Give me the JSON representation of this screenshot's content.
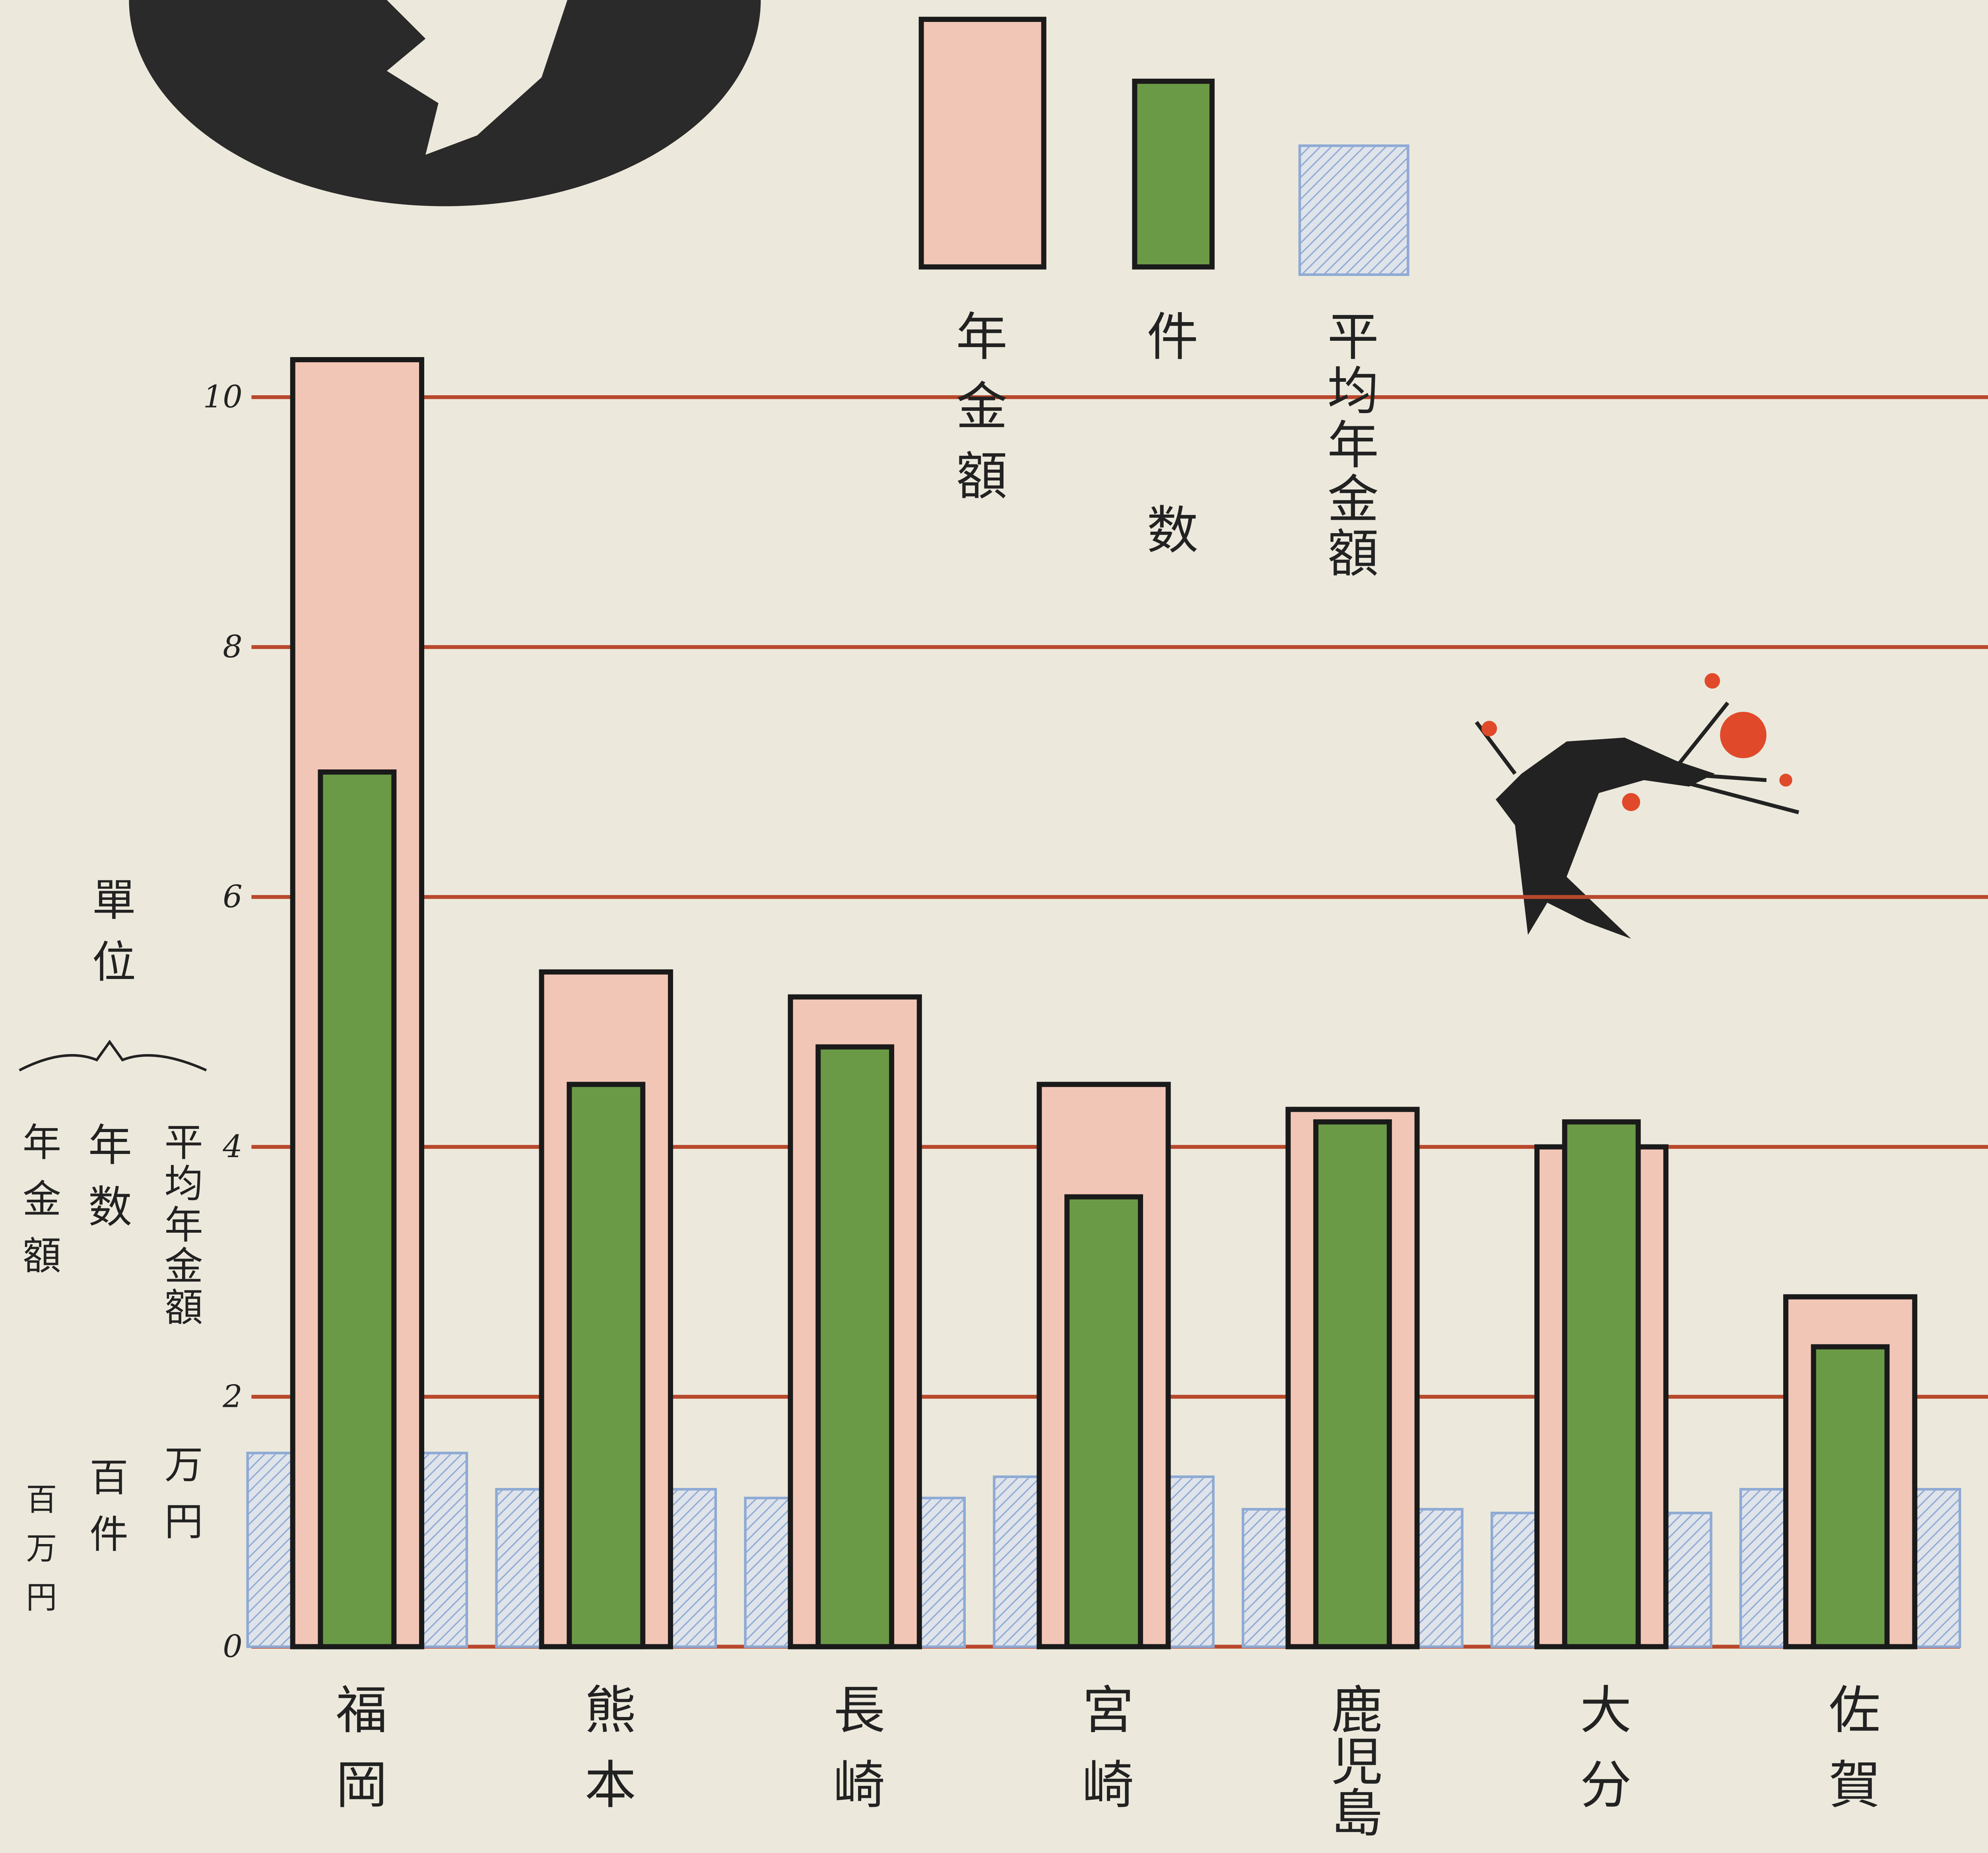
{
  "chart_data": {
    "type": "bar",
    "unit_label": "單位",
    "axis_labels": [
      {
        "name": "年金額",
        "unit": "百万円"
      },
      {
        "name": "年数",
        "unit": "百件"
      },
      {
        "name": "平均年金額",
        "unit": "万円"
      }
    ],
    "categories": [
      "福岡",
      "熊本",
      "長崎",
      "宮崎",
      "鹿児島",
      "大分",
      "佐賀"
    ],
    "series": [
      {
        "name": "平均年金額",
        "color": "#8eaad4",
        "values": [
          1.55,
          1.26,
          1.19,
          1.36,
          1.1,
          1.07,
          1.26
        ]
      },
      {
        "name": "年金額",
        "color": "#f2c6b6",
        "values": [
          10.3,
          5.4,
          5.2,
          4.5,
          4.3,
          4.0,
          2.8
        ]
      },
      {
        "name": "件数",
        "color": "#6b9a46",
        "values": [
          7.0,
          4.5,
          4.8,
          3.6,
          4.2,
          4.2,
          2.4
        ]
      }
    ],
    "legend_order": [
      1,
      2,
      0
    ],
    "ylim": [
      0,
      10.5
    ],
    "yticks": [
      0,
      2,
      4,
      6,
      8,
      10
    ],
    "grid": true,
    "grid_color": "#b8482c",
    "legend": "top"
  }
}
